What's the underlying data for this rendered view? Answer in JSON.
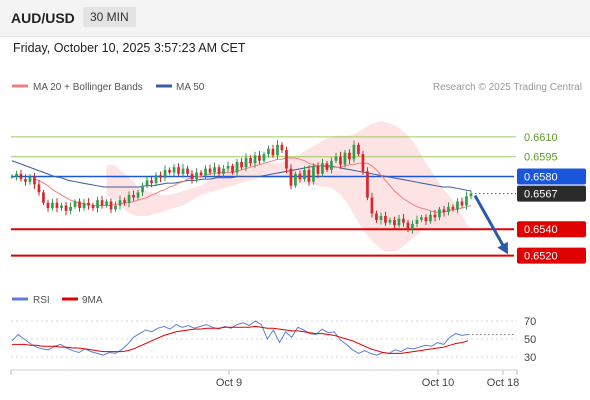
{
  "header": {
    "symbol": "AUD/USD",
    "timeframe": "30 MIN",
    "datetime": "Friday, October 10, 2025 3:57:23 AM CET"
  },
  "colors": {
    "bull_candle": "#2e9e4f",
    "bear_candle": "#d8262a",
    "ma20": "#f08080",
    "bollinger_fill": "#fde2e2",
    "ma50": "#3a5f9e",
    "resistance_line": "#9ccc65",
    "pivot_line": "#1a56db",
    "support_line": "#e00000",
    "arrow": "#2b5aa8",
    "rsi": "#5b7fd4",
    "rsi_ma": "#e00000"
  },
  "chart_data": [
    {
      "type": "candlestick",
      "title": "",
      "legend": [
        {
          "label": "MA 20 + Bollinger Bands",
          "color": "#f08080"
        },
        {
          "label": "MA 50",
          "color": "#3a5f9e"
        }
      ],
      "legend_placement": "top-left",
      "attribution": "Research © 2025 Trading Central",
      "x_tick_labels": [
        "Oct 9",
        "Oct 10",
        "Oct 18"
      ],
      "y_range": [
        0.6503,
        0.6638
      ],
      "levels": [
        {
          "value": 0.661,
          "label": "0.6610",
          "kind": "resistance"
        },
        {
          "value": 0.6595,
          "label": "0.6595",
          "kind": "resistance"
        },
        {
          "value": 0.658,
          "label": "0.6580",
          "kind": "pivot"
        },
        {
          "value": 0.6567,
          "label": "0.6567",
          "kind": "last"
        },
        {
          "value": 0.654,
          "label": "0.6540",
          "kind": "support"
        },
        {
          "value": 0.652,
          "label": "0.6520",
          "kind": "support"
        }
      ],
      "closes": [
        0.658,
        0.6582,
        0.6578,
        0.6576,
        0.658,
        0.6574,
        0.6568,
        0.656,
        0.6556,
        0.656,
        0.6556,
        0.6558,
        0.6554,
        0.6557,
        0.6561,
        0.6556,
        0.656,
        0.6558,
        0.6556,
        0.6562,
        0.6558,
        0.6561,
        0.6555,
        0.6558,
        0.6562,
        0.656,
        0.6566,
        0.6564,
        0.6568,
        0.6573,
        0.6577,
        0.6575,
        0.6581,
        0.6579,
        0.6585,
        0.6583,
        0.6587,
        0.6582,
        0.6586,
        0.6582,
        0.6578,
        0.6583,
        0.6581,
        0.6586,
        0.6583,
        0.6587,
        0.6582,
        0.6586,
        0.6588,
        0.6583,
        0.6591,
        0.6587,
        0.6594,
        0.659,
        0.6596,
        0.6592,
        0.6597,
        0.6601,
        0.6596,
        0.6604,
        0.66,
        0.6586,
        0.6573,
        0.6582,
        0.6578,
        0.6585,
        0.6576,
        0.6588,
        0.6582,
        0.659,
        0.6585,
        0.6592,
        0.6595,
        0.6589,
        0.6598,
        0.6593,
        0.6604,
        0.6597,
        0.6584,
        0.6564,
        0.6552,
        0.6547,
        0.655,
        0.6545,
        0.6547,
        0.6543,
        0.6548,
        0.6545,
        0.654,
        0.6544,
        0.6547,
        0.6549,
        0.6546,
        0.6551,
        0.6549,
        0.6555,
        0.6553,
        0.6557,
        0.6555,
        0.6561,
        0.6558,
        0.6565,
        0.6567
      ],
      "ma20": [
        0.6578,
        0.6577,
        0.6575,
        0.6573,
        0.657,
        0.6568,
        0.6566,
        0.6564,
        0.6562,
        0.6561,
        0.656,
        0.6559,
        0.6559,
        0.6558,
        0.6558,
        0.6558,
        0.6558,
        0.6558,
        0.6559,
        0.6559,
        0.656,
        0.656,
        0.6561,
        0.6562,
        0.6563,
        0.6564,
        0.6566,
        0.6567,
        0.6569,
        0.657,
        0.6572,
        0.6573,
        0.6575,
        0.6576,
        0.6578,
        0.6579,
        0.658,
        0.658,
        0.6581,
        0.6582,
        0.6582,
        0.6583,
        0.6583,
        0.6583,
        0.6583,
        0.6584,
        0.6585,
        0.6586,
        0.6587,
        0.6588,
        0.6589,
        0.659,
        0.6591,
        0.6592,
        0.6593,
        0.6593,
        0.6594,
        0.6594,
        0.6594,
        0.6593,
        0.6592,
        0.659,
        0.6589,
        0.6588,
        0.6588,
        0.6587,
        0.6587,
        0.6587,
        0.6587,
        0.6588,
        0.6589,
        0.6589,
        0.659,
        0.659,
        0.659,
        0.6588,
        0.6585,
        0.6581,
        0.6577,
        0.6573,
        0.6569,
        0.6566,
        0.6563,
        0.6561,
        0.6559,
        0.6557,
        0.6556,
        0.6555,
        0.6554,
        0.6553,
        0.6553,
        0.6553,
        0.6554,
        0.6555,
        0.6555,
        0.6556,
        0.6557,
        0.6558
      ],
      "bollinger_upper": [
        0.6588,
        0.6589,
        0.6588,
        0.6585,
        0.6582,
        0.6579,
        0.6576,
        0.6572,
        0.657,
        0.6569,
        0.6568,
        0.6567,
        0.6566,
        0.6566,
        0.6566,
        0.6567,
        0.6568,
        0.6569,
        0.657,
        0.6571,
        0.6572,
        0.6573,
        0.6575,
        0.6577,
        0.658,
        0.6582,
        0.6585,
        0.6587,
        0.6589,
        0.659,
        0.6591,
        0.6591,
        0.6591,
        0.6591,
        0.6591,
        0.659,
        0.659,
        0.659,
        0.659,
        0.6591,
        0.6592,
        0.6594,
        0.6595,
        0.6597,
        0.6599,
        0.6601,
        0.6603,
        0.6605,
        0.6607,
        0.6609,
        0.661,
        0.6611,
        0.6611,
        0.6611,
        0.6611,
        0.6612,
        0.6614,
        0.6616,
        0.6618,
        0.662,
        0.6621,
        0.6622,
        0.6621,
        0.662,
        0.6619,
        0.6617,
        0.6614,
        0.6611,
        0.6607,
        0.6602,
        0.6596,
        0.659,
        0.6585,
        0.658,
        0.6575,
        0.657,
        0.6566,
        0.6562,
        0.6557,
        0.655,
        0.6544,
        0.654
      ],
      "bollinger_lower": [
        0.6566,
        0.6564,
        0.6561,
        0.6558,
        0.6555,
        0.6552,
        0.6551,
        0.655,
        0.655,
        0.655,
        0.6551,
        0.6552,
        0.6553,
        0.6554,
        0.6555,
        0.6556,
        0.6557,
        0.6558,
        0.656,
        0.6562,
        0.6564,
        0.6566,
        0.6567,
        0.6568,
        0.6569,
        0.657,
        0.6571,
        0.6572,
        0.6573,
        0.6574,
        0.6575,
        0.6576,
        0.6577,
        0.6578,
        0.6579,
        0.6579,
        0.6579,
        0.6579,
        0.6579,
        0.6579,
        0.6579,
        0.6578,
        0.6577,
        0.6576,
        0.6575,
        0.6574,
        0.6574,
        0.6573,
        0.6572,
        0.6572,
        0.6571,
        0.6569,
        0.6566,
        0.6562,
        0.6557,
        0.6551,
        0.6545,
        0.654,
        0.6535,
        0.6531,
        0.6528,
        0.6525,
        0.6523,
        0.6523,
        0.6523,
        0.6525,
        0.6527,
        0.653,
        0.6533,
        0.6536,
        0.6539,
        0.6541,
        0.6541,
        0.6541,
        0.6541,
        0.6541,
        0.6541,
        0.6541,
        0.6541,
        0.6541,
        0.6541,
        0.6541
      ],
      "ma50": [
        0.6592,
        0.659,
        0.6588,
        0.6586,
        0.6584,
        0.6582,
        0.658,
        0.6579,
        0.6577,
        0.6576,
        0.6575,
        0.6574,
        0.6573,
        0.6572,
        0.6572,
        0.6572,
        0.6572,
        0.6572,
        0.6572,
        0.6573,
        0.6573,
        0.6574,
        0.6575,
        0.6575,
        0.6576,
        0.6577,
        0.6577,
        0.6578,
        0.6578,
        0.6579,
        0.6579,
        0.6579,
        0.658,
        0.658,
        0.658,
        0.658,
        0.6581,
        0.6582,
        0.6583,
        0.6584,
        0.6585,
        0.6586,
        0.6587,
        0.6588,
        0.6588,
        0.6588,
        0.6587,
        0.6586,
        0.6585,
        0.6584,
        0.6583,
        0.6582,
        0.6581,
        0.658,
        0.6579,
        0.6578,
        0.6577,
        0.6576,
        0.6575,
        0.6574,
        0.6573,
        0.6572,
        0.6572,
        0.6571,
        0.657,
        0.6569
      ]
    },
    {
      "type": "line",
      "title": "RSI",
      "legend": [
        {
          "label": "RSI",
          "color": "#5b7fd4"
        },
        {
          "label": "9MA",
          "color": "#e00000"
        }
      ],
      "legend_placement": "top-left",
      "y_tick_labels": [
        "70",
        "50",
        "30"
      ],
      "ylim": [
        20,
        80
      ],
      "series": [
        {
          "name": "RSI",
          "values": [
            48,
            55,
            50,
            45,
            41,
            39,
            38,
            42,
            44,
            40,
            37,
            35,
            39,
            36,
            34,
            32,
            35,
            34,
            38,
            44,
            52,
            56,
            60,
            58,
            62,
            64,
            61,
            66,
            63,
            65,
            62,
            64,
            66,
            63,
            61,
            64,
            62,
            66,
            68,
            65,
            70,
            66,
            50,
            60,
            46,
            58,
            52,
            63,
            60,
            56,
            55,
            61,
            57,
            58,
            49,
            44,
            38,
            34,
            37,
            34,
            32,
            35,
            34,
            38,
            36,
            40,
            39,
            41,
            43,
            42,
            46,
            44,
            52,
            56,
            54,
            55
          ]
        },
        {
          "name": "9MA",
          "values": [
            44,
            44,
            44,
            43,
            43,
            42,
            42,
            42,
            41,
            41,
            40,
            40,
            39,
            38,
            37,
            36,
            36,
            36,
            36,
            37,
            39,
            42,
            45,
            48,
            51,
            54,
            56,
            58,
            59,
            60,
            61,
            61,
            62,
            62,
            62,
            63,
            63,
            63,
            63,
            63,
            64,
            63,
            62,
            62,
            61,
            60,
            59,
            59,
            58,
            57,
            56,
            56,
            55,
            54,
            52,
            50,
            48,
            45,
            42,
            39,
            37,
            35,
            34,
            34,
            34,
            35,
            36,
            37,
            38,
            39,
            40,
            41,
            43,
            45,
            46,
            48
          ]
        }
      ]
    }
  ]
}
